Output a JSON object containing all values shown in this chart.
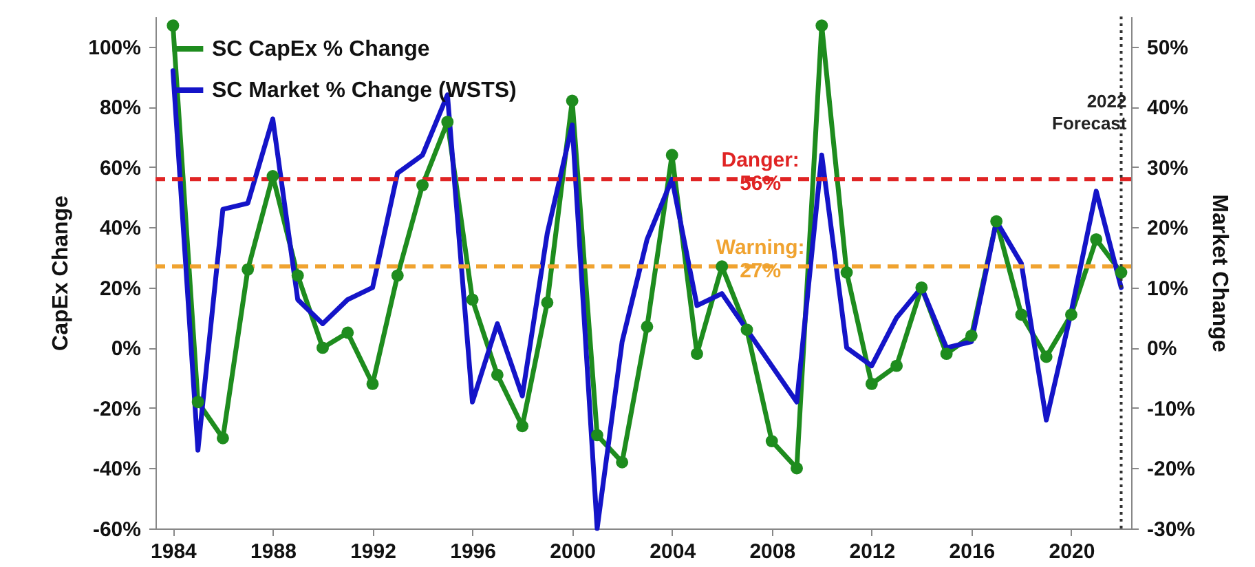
{
  "chart_data": {
    "type": "line",
    "ylabel": "CapEx Change",
    "y2label": "Market Change",
    "x": [
      1984,
      1985,
      1986,
      1987,
      1988,
      1989,
      1990,
      1991,
      1992,
      1993,
      1994,
      1995,
      1996,
      1997,
      1998,
      1999,
      2000,
      2001,
      2002,
      2003,
      2004,
      2005,
      2006,
      2007,
      2008,
      2009,
      2010,
      2011,
      2012,
      2013,
      2014,
      2015,
      2016,
      2017,
      2018,
      2019,
      2020,
      2021,
      2022
    ],
    "series": [
      {
        "name": "SC CapEx % Change",
        "color": "#1e8c1e",
        "marker": "circle",
        "values": [
          107,
          -18,
          -30,
          26,
          57,
          24,
          0,
          5,
          -12,
          24,
          54,
          75,
          16,
          -9,
          -26,
          15,
          82,
          -29,
          -38,
          7,
          64,
          -2,
          27,
          6,
          -31,
          -40,
          107,
          25,
          -12,
          -6,
          20,
          -2,
          4,
          42,
          11,
          -3,
          11,
          36,
          25
        ]
      },
      {
        "name": "SC Market % Change (WSTS)",
        "color": "#1414c8",
        "marker": "none",
        "axis": "y2",
        "values": [
          46,
          -17,
          23,
          24,
          38,
          8,
          4,
          8,
          10,
          29,
          32,
          42,
          -9,
          4,
          -8,
          19,
          37,
          -30,
          1,
          18,
          28,
          7,
          9,
          3,
          -3,
          -9,
          32,
          0,
          -3,
          5,
          10,
          0,
          1,
          21,
          14,
          -12,
          6,
          26,
          10
        ]
      }
    ],
    "xlim": [
      1983.3,
      2022.4
    ],
    "xticks": [
      1984,
      1988,
      1992,
      1996,
      2000,
      2004,
      2008,
      2012,
      2016,
      2020
    ],
    "ylim": [
      -60,
      110
    ],
    "yticks": [
      {
        "value": -60,
        "label": "-60%"
      },
      {
        "value": -40,
        "label": "-40%"
      },
      {
        "value": -20,
        "label": "-20%"
      },
      {
        "value": 0,
        "label": "0%"
      },
      {
        "value": 20,
        "label": "20%"
      },
      {
        "value": 40,
        "label": "40%"
      },
      {
        "value": 60,
        "label": "60%"
      },
      {
        "value": 80,
        "label": "80%"
      },
      {
        "value": 100,
        "label": "100%"
      }
    ],
    "y2lim": [
      -30,
      55
    ],
    "y2ticks": [
      {
        "value": -30,
        "label": "-30%"
      },
      {
        "value": -20,
        "label": "-20%"
      },
      {
        "value": -10,
        "label": "-10%"
      },
      {
        "value": 0,
        "label": "0%"
      },
      {
        "value": 10,
        "label": "10%"
      },
      {
        "value": 20,
        "label": "20%"
      },
      {
        "value": 30,
        "label": "30%"
      },
      {
        "value": 40,
        "label": "40%"
      },
      {
        "value": 50,
        "label": "50%"
      }
    ],
    "ref_lines": [
      {
        "axis": "y",
        "value": 56,
        "label": "Danger: 56%",
        "color": "#e02424",
        "line_style": "dashed"
      },
      {
        "axis": "y",
        "value": 27,
        "label": "Warning: 27%",
        "color": "#f0a330",
        "line_style": "dashed"
      },
      {
        "axis": "x",
        "value": 2022,
        "label": "2022 Forecast",
        "color": "#333333",
        "line_style": "dotted"
      }
    ],
    "grid": false,
    "legend": "top left"
  }
}
